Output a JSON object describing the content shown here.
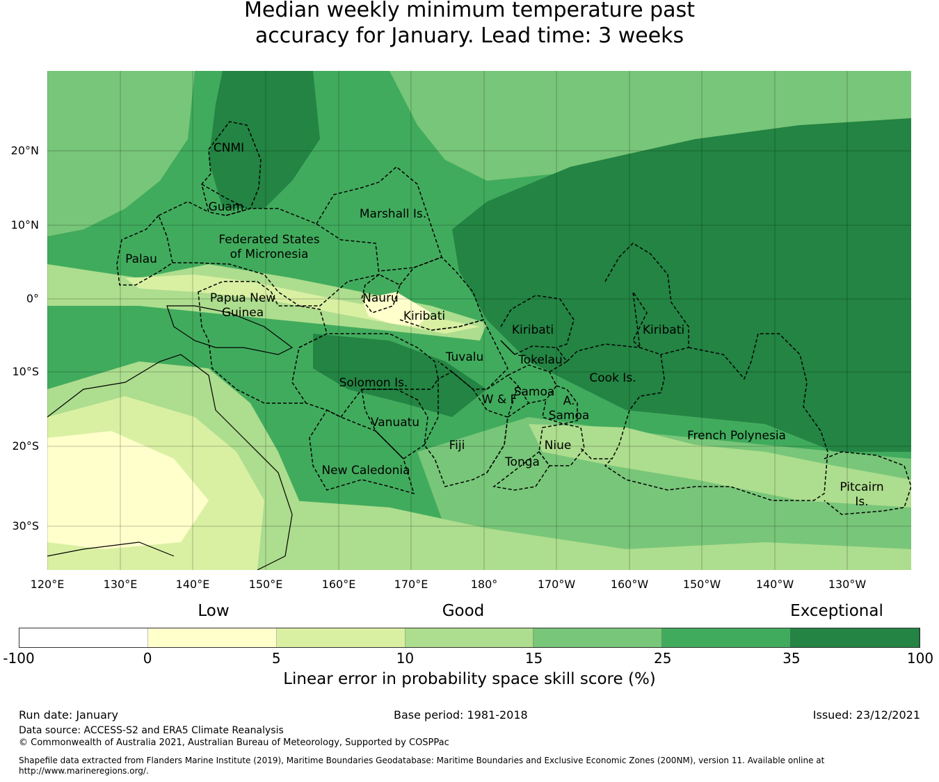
{
  "title": {
    "line1": "Median weekly minimum temperature past",
    "line2": "accuracy for January. Lead time: 3 weeks"
  },
  "map": {
    "lon_ticks": [
      "120°E",
      "130°E",
      "140°E",
      "150°E",
      "160°E",
      "170°E",
      "180°",
      "170°W",
      "160°W",
      "150°W",
      "140°W",
      "130°W"
    ],
    "lat_ticks": [
      "20°N",
      "10°N",
      "0°",
      "10°S",
      "20°S",
      "30°S"
    ],
    "regions": [
      {
        "name": "CNMI"
      },
      {
        "name": "Guam"
      },
      {
        "name": "Palau"
      },
      {
        "name": "Federated States",
        "name2": "of Micronesia"
      },
      {
        "name": "Marshall Is."
      },
      {
        "name": "Papua New",
        "name2": "Guinea"
      },
      {
        "name": "Nauru"
      },
      {
        "name": "Kiribati"
      },
      {
        "name": "Solomon Is."
      },
      {
        "name": "Vanuatu"
      },
      {
        "name": "New Caledonia"
      },
      {
        "name": "Tuvalu"
      },
      {
        "name": "Fiji"
      },
      {
        "name": "W & F"
      },
      {
        "name": "Samoa"
      },
      {
        "name": "Tokelau"
      },
      {
        "name": "Kiribati"
      },
      {
        "name": "A."
      },
      {
        "name": "Samoa"
      },
      {
        "name": "Niue"
      },
      {
        "name": "Tonga"
      },
      {
        "name": "Cook Is."
      },
      {
        "name": "Kiribati"
      },
      {
        "name": "French Polynesia"
      },
      {
        "name": "Pitcairn",
        "name2": "Is."
      }
    ]
  },
  "colorbar": {
    "category_labels": [
      "Low",
      "Good",
      "Exceptional"
    ],
    "ticks": [
      "-100",
      "0",
      "5",
      "10",
      "15",
      "25",
      "35",
      "100"
    ],
    "colors": [
      "#ffffff",
      "#ffffcc",
      "#d9f0a3",
      "#addd8e",
      "#78c679",
      "#41ab5d",
      "#238443"
    ],
    "label": "Linear error in probability space skill score (%)"
  },
  "footer": {
    "run_date": "Run date: January",
    "base_period": "Base period: 1981-2018",
    "issued": "Issued: 23/12/2021",
    "data_source": "Data source: ACCESS-S2 and ERA5 Climate Reanalysis",
    "copyright": "© Commonwealth of Australia 2021, Australian Bureau of Meteorology, Supported by COSPPac",
    "shapefile_line1": "Shapefile data extracted from Flanders Marine Institute (2019), Maritime Boundaries Geodatabase: Maritime Boundaries and Exclusive Economic Zones (200NM), version 11. Available online at",
    "shapefile_line2": "http://www.marineregions.org/."
  }
}
